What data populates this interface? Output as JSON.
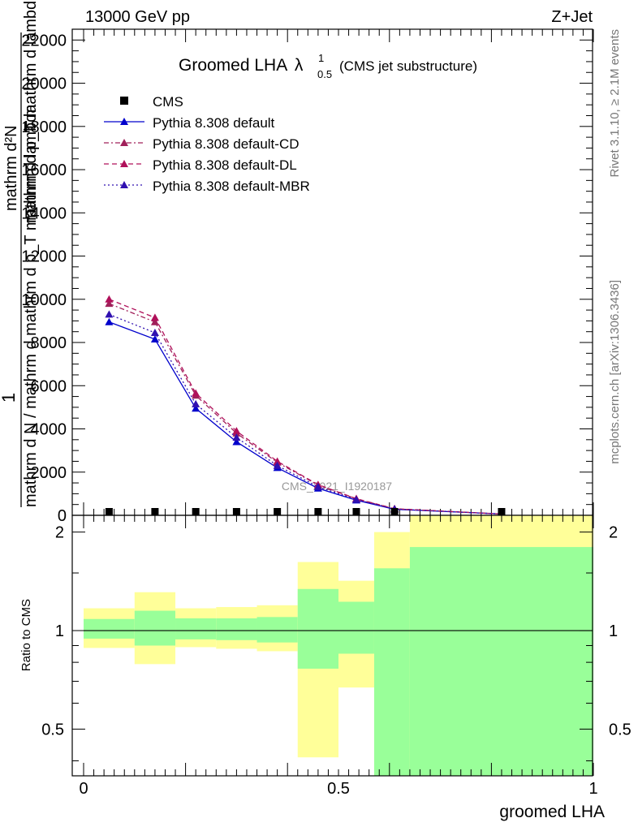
{
  "header": {
    "left": "13000 GeV pp",
    "right": "Z+Jet"
  },
  "side_labels": {
    "rivet": "Rivet 3.1.10, ≥ 2.1M events",
    "mcplots": "mcplots.cern.ch [arXiv:1306.3436]"
  },
  "watermark": "CMS_2021_I1920187",
  "chart_data": [
    {
      "type": "line",
      "title_main": "Groomed LHA",
      "title_lambda": "λ",
      "title_sup": "1",
      "title_sub": "0.5",
      "title_suffix": "(CMS jet substructure)",
      "xlabel": "",
      "ylabel_numer": "1",
      "ylabel_denom": "mathrm d N / mathrm d mathrm d p_T mathrm d lambda",
      "ylabel_main": "mathrm d²N",
      "ylabel_sub": "mathrm d p_T mathrm d lambda",
      "xlim": [
        0,
        1
      ],
      "ylim": [
        0,
        22500
      ],
      "yticks": [
        0,
        2000,
        4000,
        6000,
        8000,
        10000,
        12000,
        14000,
        16000,
        18000,
        20000,
        22000
      ],
      "ytick_labels": [
        "0",
        "2000",
        "4000",
        "6000",
        "8000",
        "10000",
        "12000",
        "14000",
        "16000",
        "18000",
        "20000",
        "22000"
      ],
      "legend_position": "top-left",
      "data": {
        "name": "CMS",
        "x": [
          0.05,
          0.14,
          0.22,
          0.3,
          0.38,
          0.46,
          0.535,
          0.61,
          0.82
        ],
        "y": [
          0,
          0,
          0,
          0,
          0,
          0,
          0,
          0,
          0
        ]
      },
      "series": [
        {
          "name": "Pythia 8.308 default",
          "color": "#0000cc",
          "dash": "solid",
          "x": [
            0.05,
            0.14,
            0.22,
            0.3,
            0.38,
            0.46,
            0.535,
            0.61,
            0.82
          ],
          "y": [
            8950,
            8150,
            4950,
            3400,
            2200,
            1250,
            700,
            280,
            60
          ]
        },
        {
          "name": "Pythia 8.308 default-CD",
          "color": "#a0205a",
          "dash": "dashdot",
          "x": [
            0.05,
            0.14,
            0.22,
            0.3,
            0.38,
            0.46,
            0.535,
            0.61,
            0.82
          ],
          "y": [
            9800,
            8950,
            5550,
            3800,
            2450,
            1400,
            760,
            300,
            60
          ]
        },
        {
          "name": "Pythia 8.308 default-DL",
          "color": "#b0105a",
          "dash": "dashed",
          "x": [
            0.05,
            0.14,
            0.22,
            0.3,
            0.38,
            0.46,
            0.535,
            0.61,
            0.82
          ],
          "y": [
            10000,
            9150,
            5650,
            3900,
            2500,
            1420,
            770,
            305,
            62
          ]
        },
        {
          "name": "Pythia 8.308 default-MBR",
          "color": "#3010b0",
          "dash": "dotted",
          "x": [
            0.05,
            0.14,
            0.22,
            0.3,
            0.38,
            0.46,
            0.535,
            0.61,
            0.82
          ],
          "y": [
            9300,
            8450,
            5150,
            3600,
            2300,
            1320,
            730,
            290,
            60
          ]
        }
      ]
    },
    {
      "type": "area",
      "title": "",
      "xlabel": "groomed LHA",
      "ylabel": "Ratio to CMS",
      "xlim": [
        0,
        1
      ],
      "ylim": [
        0.36,
        2.25
      ],
      "yticks": [
        0.5,
        1,
        2
      ],
      "ytick_labels": [
        "0.5",
        "1",
        "2"
      ],
      "xticks": [
        0,
        0.5,
        1
      ],
      "xtick_labels": [
        "0",
        "0.5",
        "1"
      ],
      "reference_line": 1,
      "bins": [
        {
          "x_lo": 0.0,
          "x_hi": 0.1,
          "inner": [
            0.945,
            1.085
          ],
          "outer": [
            0.885,
            1.17
          ]
        },
        {
          "x_lo": 0.1,
          "x_hi": 0.18,
          "inner": [
            0.9,
            1.15
          ],
          "outer": [
            0.79,
            1.31
          ]
        },
        {
          "x_lo": 0.18,
          "x_hi": 0.26,
          "inner": [
            0.94,
            1.09
          ],
          "outer": [
            0.89,
            1.17
          ]
        },
        {
          "x_lo": 0.26,
          "x_hi": 0.34,
          "inner": [
            0.935,
            1.09
          ],
          "outer": [
            0.88,
            1.18
          ]
        },
        {
          "x_lo": 0.34,
          "x_hi": 0.42,
          "inner": [
            0.92,
            1.1
          ],
          "outer": [
            0.865,
            1.195
          ]
        },
        {
          "x_lo": 0.42,
          "x_hi": 0.5,
          "inner": [
            0.765,
            1.34
          ],
          "outer": [
            0.41,
            1.62
          ]
        },
        {
          "x_lo": 0.5,
          "x_hi": 0.57,
          "inner": [
            0.85,
            1.225
          ],
          "outer": [
            0.67,
            1.42
          ]
        },
        {
          "x_lo": 0.57,
          "x_hi": 0.64,
          "inner": [
            0.36,
            1.55
          ],
          "outer": [
            0.36,
            2.0
          ]
        },
        {
          "x_lo": 0.64,
          "x_hi": 1.0,
          "inner": [
            0.36,
            1.8
          ],
          "outer": [
            0.36,
            2.25
          ]
        }
      ]
    }
  ]
}
